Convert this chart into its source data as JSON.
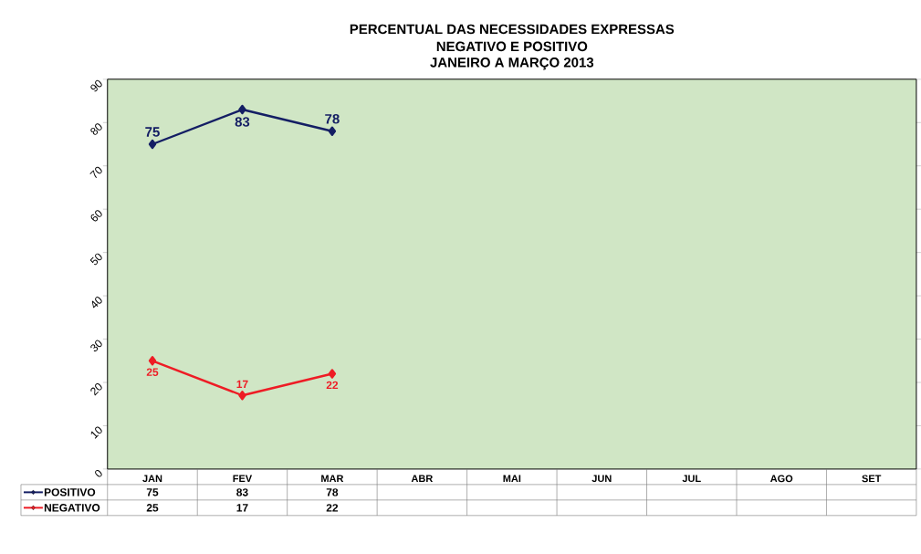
{
  "chart_data": {
    "type": "line",
    "title": "PERCENTUAL DAS NECESSIDADES EXPRESSAS",
    "subtitle": "NEGATIVO E  POSITIVO",
    "annotations": [
      "JANEIRO A MARÇO 2013"
    ],
    "categories": [
      "JAN",
      "FEV",
      "MAR",
      "ABR",
      "MAI",
      "JUN",
      "JUL",
      "AGO",
      "SET"
    ],
    "series": [
      {
        "name": "POSITIVO",
        "color": "#141e64",
        "values": [
          75,
          83,
          78,
          null,
          null,
          null,
          null,
          null,
          null
        ],
        "value_labels": [
          "75",
          "83",
          "78",
          null,
          null,
          null,
          null,
          null,
          null
        ]
      },
      {
        "name": "NEGATIVO",
        "color": "#ee1c25",
        "values": [
          25,
          17,
          22,
          null,
          null,
          null,
          null,
          null,
          null
        ],
        "value_labels": [
          "25",
          "17",
          "22",
          null,
          null,
          null,
          null,
          null,
          null
        ]
      }
    ],
    "ylim": [
      0,
      90
    ],
    "yticks": [
      0,
      10,
      20,
      30,
      40,
      50,
      60,
      70,
      80,
      90
    ],
    "grid": false,
    "legend": "bottom",
    "marker": "diamond",
    "line_style": "solid"
  }
}
